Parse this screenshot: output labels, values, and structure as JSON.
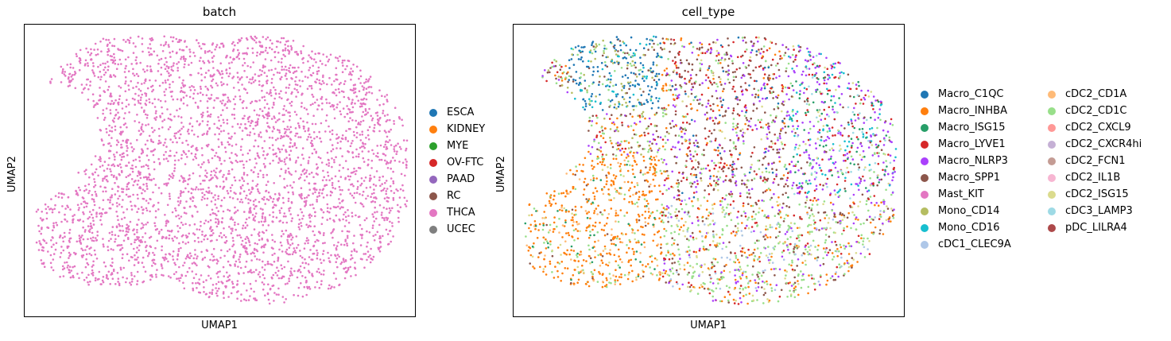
{
  "chart_data": [
    {
      "type": "scatter",
      "title": "batch",
      "xlabel": "UMAP1",
      "ylabel": "UMAP2",
      "grid": false,
      "ticks": false,
      "legend_placement": "right",
      "legend": [
        {
          "label": "ESCA",
          "color": "#1f77b4"
        },
        {
          "label": "KIDNEY",
          "color": "#ff7f0e"
        },
        {
          "label": "MYE",
          "color": "#2ca02c"
        },
        {
          "label": "OV-FTC",
          "color": "#d62728"
        },
        {
          "label": "PAAD",
          "color": "#9467bd"
        },
        {
          "label": "RC",
          "color": "#8c564b"
        },
        {
          "label": "THCA",
          "color": "#e377c2"
        },
        {
          "label": "UCEC",
          "color": "#7f7f7f"
        }
      ],
      "points_colored_by": "THCA"
    },
    {
      "type": "scatter",
      "title": "cell_type",
      "xlabel": "UMAP1",
      "ylabel": "UMAP2",
      "grid": false,
      "ticks": false,
      "legend_placement": "right",
      "legend": [
        {
          "label": "Macro_C1QC",
          "color": "#1f77b4"
        },
        {
          "label": "Macro_INHBA",
          "color": "#ff7f0e"
        },
        {
          "label": "Macro_ISG15",
          "color": "#279e68"
        },
        {
          "label": "Macro_LYVE1",
          "color": "#d62728"
        },
        {
          "label": "Macro_NLRP3",
          "color": "#aa40fc"
        },
        {
          "label": "Macro_SPP1",
          "color": "#8c564b"
        },
        {
          "label": "Mast_KIT",
          "color": "#e377c2"
        },
        {
          "label": "Mono_CD14",
          "color": "#b5bd61"
        },
        {
          "label": "Mono_CD16",
          "color": "#17becf"
        },
        {
          "label": "cDC1_CLEC9A",
          "color": "#aec7e8"
        },
        {
          "label": "cDC2_CD1A",
          "color": "#ffbb78"
        },
        {
          "label": "cDC2_CD1C",
          "color": "#98df8a"
        },
        {
          "label": "cDC2_CXCL9",
          "color": "#ff9896"
        },
        {
          "label": "cDC2_CXCR4hi",
          "color": "#c5b0d5"
        },
        {
          "label": "cDC2_FCN1",
          "color": "#c49c94"
        },
        {
          "label": "cDC2_IL1B",
          "color": "#f7b6d2"
        },
        {
          "label": "cDC2_ISG15",
          "color": "#dbdb8d"
        },
        {
          "label": "cDC3_LAMP3",
          "color": "#9edae5"
        },
        {
          "label": "pDC_LILRA4",
          "color": "#ad494a"
        }
      ]
    }
  ]
}
